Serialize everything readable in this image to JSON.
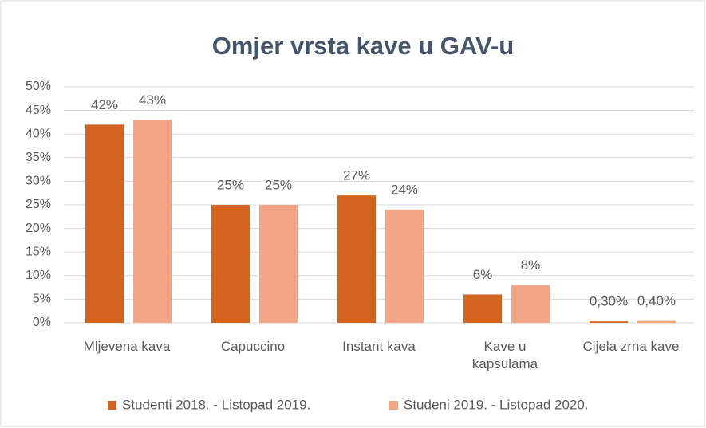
{
  "chart_data": {
    "type": "bar",
    "title": "Omjer vrsta kave u GAV-u",
    "categories": [
      "Mljevena kava",
      "Capuccino",
      "Instant kava",
      "Kave u kapsulama",
      "Cijela zrna kave"
    ],
    "series": [
      {
        "name": "Studenti 2018. - Listopad 2019.",
        "color": "#d2641f",
        "values": [
          42,
          25,
          27,
          6,
          0.3
        ],
        "value_labels": [
          "42%",
          "25%",
          "27%",
          "6%",
          "0,30%"
        ]
      },
      {
        "name": "Studeni 2019. - Listopad 2020.",
        "color": "#f2a585",
        "values": [
          43,
          25,
          24,
          8,
          0.4
        ],
        "value_labels": [
          "43%",
          "25%",
          "24%",
          "8%",
          "0,40%"
        ]
      }
    ],
    "ylim": [
      0,
      50
    ],
    "yticks": [
      {
        "value": 0,
        "label": "0%"
      },
      {
        "value": 5,
        "label": "5%"
      },
      {
        "value": 10,
        "label": "10%"
      },
      {
        "value": 15,
        "label": "15%"
      },
      {
        "value": 20,
        "label": "20%"
      },
      {
        "value": 25,
        "label": "25%"
      },
      {
        "value": 30,
        "label": "30%"
      },
      {
        "value": 35,
        "label": "35%"
      },
      {
        "value": 40,
        "label": "40%"
      },
      {
        "value": 45,
        "label": "45%"
      },
      {
        "value": 50,
        "label": "50%"
      }
    ],
    "grid": true,
    "legend": "bottom"
  }
}
